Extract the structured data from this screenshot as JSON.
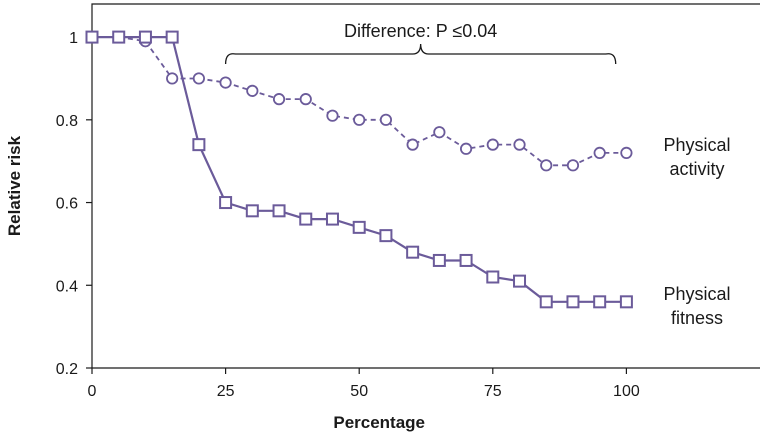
{
  "chart_data": {
    "type": "line",
    "title": "",
    "xlabel": "Percentage",
    "ylabel": "Relative risk",
    "xlim": [
      0,
      125
    ],
    "ylim": [
      0.2,
      1.08
    ],
    "xticks": [
      0,
      25,
      50,
      75,
      100
    ],
    "yticks": [
      0.2,
      0.4,
      0.6,
      0.8,
      1
    ],
    "grid": false,
    "annotation": {
      "text": "Difference: P ≤0.04",
      "x_start": 25,
      "x_end": 98
    },
    "series": [
      {
        "name": "Physical activity",
        "label_lines": [
          "Physical",
          "activity"
        ],
        "marker": "circle",
        "line_style": "dashed",
        "color": "#6b5b9a",
        "x": [
          0,
          5,
          10,
          15,
          20,
          25,
          30,
          35,
          40,
          45,
          50,
          55,
          60,
          65,
          70,
          75,
          80,
          85,
          90,
          95,
          100
        ],
        "y": [
          1.0,
          1.0,
          0.99,
          0.9,
          0.9,
          0.89,
          0.87,
          0.85,
          0.85,
          0.81,
          0.8,
          0.8,
          0.74,
          0.77,
          0.73,
          0.74,
          0.74,
          0.69,
          0.69,
          0.72,
          0.72
        ]
      },
      {
        "name": "Physical fitness",
        "label_lines": [
          "Physical",
          "fitness"
        ],
        "marker": "square",
        "line_style": "solid",
        "color": "#6b5b9a",
        "x": [
          0,
          5,
          10,
          15,
          20,
          25,
          30,
          35,
          40,
          45,
          50,
          55,
          60,
          65,
          70,
          75,
          80,
          85,
          90,
          95,
          100
        ],
        "y": [
          1.0,
          1.0,
          1.0,
          1.0,
          0.74,
          0.6,
          0.58,
          0.58,
          0.56,
          0.56,
          0.54,
          0.52,
          0.48,
          0.46,
          0.46,
          0.42,
          0.41,
          0.36,
          0.36,
          0.36,
          0.36
        ]
      }
    ]
  }
}
